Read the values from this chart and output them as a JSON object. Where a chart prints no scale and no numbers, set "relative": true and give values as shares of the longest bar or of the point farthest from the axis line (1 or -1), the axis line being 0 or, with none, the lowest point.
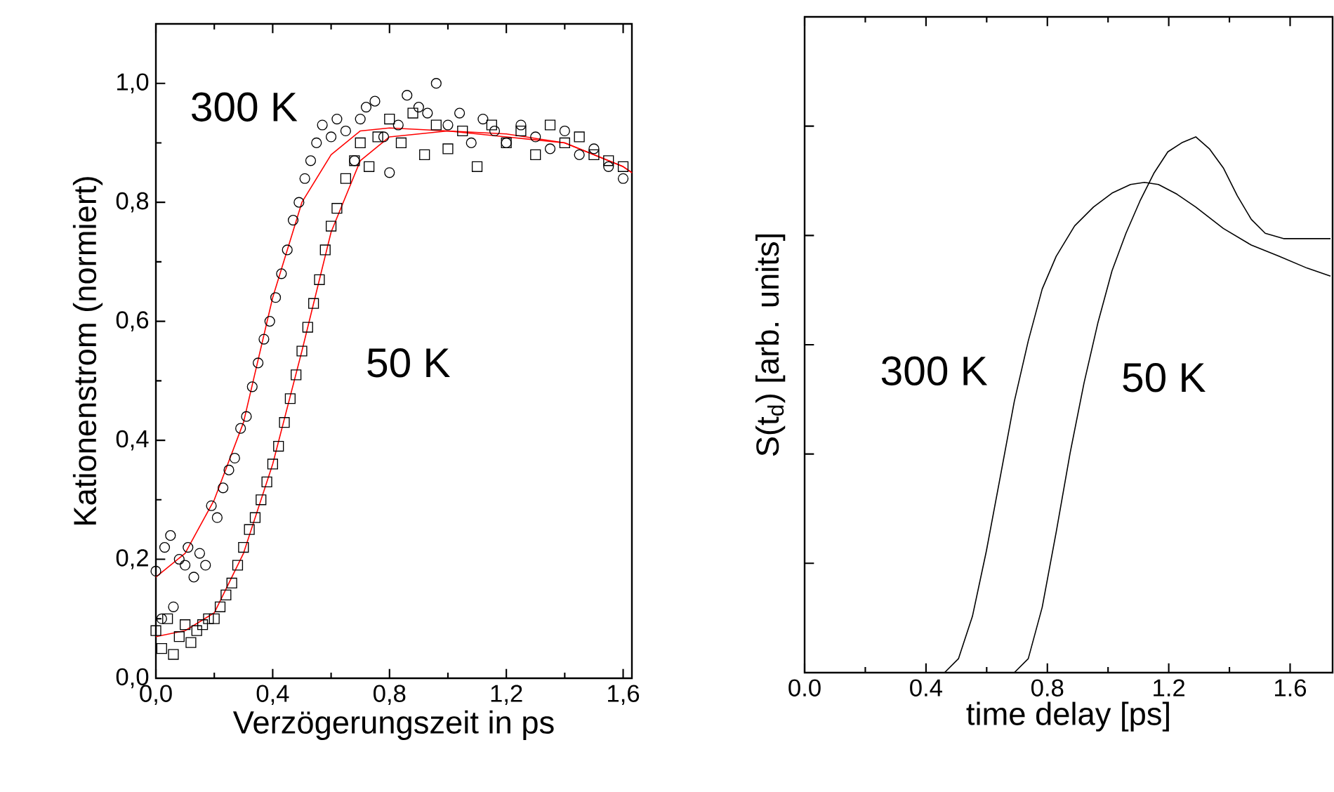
{
  "chart_data": [
    {
      "type": "scatter",
      "xlabel": "Verzögerungszeit in ps",
      "ylabel": "Kationenstrom (normiert)",
      "xlim": [
        0,
        1.63
      ],
      "ylim": [
        0,
        1.1
      ],
      "xticks": [
        {
          "value": 0,
          "label": "0,0"
        },
        {
          "value": 0.4,
          "label": "0,4"
        },
        {
          "value": 0.8,
          "label": "0,8"
        },
        {
          "value": 1.2,
          "label": "1,2"
        },
        {
          "value": 1.6,
          "label": "1,6"
        }
      ],
      "yticks": [
        {
          "value": 0,
          "label": "0,0"
        },
        {
          "value": 0.2,
          "label": "0,2"
        },
        {
          "value": 0.4,
          "label": "0,4"
        },
        {
          "value": 0.6,
          "label": "0,6"
        },
        {
          "value": 0.8,
          "label": "0,8"
        },
        {
          "value": 1.0,
          "label": "1,0"
        }
      ],
      "series": [
        {
          "type": "scatter",
          "marker": "circle",
          "color": "#000000",
          "x": [
            0.0,
            0.02,
            0.03,
            0.05,
            0.06,
            0.08,
            0.1,
            0.11,
            0.13,
            0.15,
            0.17,
            0.19,
            0.21,
            0.23,
            0.25,
            0.27,
            0.29,
            0.31,
            0.33,
            0.35,
            0.37,
            0.39,
            0.41,
            0.43,
            0.45,
            0.47,
            0.49,
            0.51,
            0.53,
            0.55,
            0.57,
            0.6,
            0.62,
            0.65,
            0.68,
            0.7,
            0.72,
            0.75,
            0.78,
            0.8,
            0.83,
            0.86,
            0.9,
            0.93,
            0.96,
            1.0,
            1.04,
            1.08,
            1.12,
            1.16,
            1.2,
            1.25,
            1.3,
            1.35,
            1.4,
            1.45,
            1.5,
            1.55,
            1.6
          ],
          "values": [
            0.18,
            0.1,
            0.22,
            0.24,
            0.12,
            0.2,
            0.19,
            0.22,
            0.17,
            0.21,
            0.19,
            0.29,
            0.27,
            0.32,
            0.35,
            0.37,
            0.42,
            0.44,
            0.49,
            0.53,
            0.57,
            0.6,
            0.64,
            0.68,
            0.72,
            0.77,
            0.8,
            0.84,
            0.87,
            0.9,
            0.93,
            0.91,
            0.94,
            0.92,
            0.87,
            0.94,
            0.96,
            0.97,
            0.91,
            0.85,
            0.93,
            0.98,
            0.96,
            0.95,
            1.0,
            0.93,
            0.95,
            0.9,
            0.94,
            0.92,
            0.9,
            0.93,
            0.91,
            0.89,
            0.92,
            0.88,
            0.89,
            0.86,
            0.84
          ]
        },
        {
          "type": "scatter",
          "marker": "square",
          "color": "#000000",
          "x": [
            0.0,
            0.02,
            0.04,
            0.06,
            0.08,
            0.1,
            0.12,
            0.14,
            0.16,
            0.18,
            0.2,
            0.22,
            0.24,
            0.26,
            0.28,
            0.3,
            0.32,
            0.34,
            0.36,
            0.38,
            0.4,
            0.42,
            0.44,
            0.46,
            0.48,
            0.5,
            0.52,
            0.54,
            0.56,
            0.58,
            0.6,
            0.62,
            0.65,
            0.68,
            0.7,
            0.73,
            0.76,
            0.8,
            0.84,
            0.88,
            0.92,
            0.96,
            1.0,
            1.05,
            1.1,
            1.15,
            1.2,
            1.25,
            1.3,
            1.35,
            1.4,
            1.45,
            1.5,
            1.55,
            1.6
          ],
          "values": [
            0.08,
            0.05,
            0.1,
            0.04,
            0.07,
            0.09,
            0.06,
            0.08,
            0.09,
            0.1,
            0.1,
            0.12,
            0.14,
            0.16,
            0.19,
            0.22,
            0.25,
            0.27,
            0.3,
            0.33,
            0.36,
            0.39,
            0.43,
            0.47,
            0.51,
            0.55,
            0.59,
            0.63,
            0.67,
            0.72,
            0.76,
            0.79,
            0.84,
            0.87,
            0.9,
            0.86,
            0.91,
            0.94,
            0.9,
            0.95,
            0.88,
            0.93,
            0.89,
            0.92,
            0.86,
            0.93,
            0.9,
            0.92,
            0.88,
            0.93,
            0.9,
            0.91,
            0.88,
            0.87,
            0.86
          ]
        },
        {
          "type": "line",
          "color": "#ff0000",
          "x": [
            0,
            0.1,
            0.2,
            0.3,
            0.4,
            0.5,
            0.6,
            0.7,
            0.8,
            1.0,
            1.2,
            1.4,
            1.6,
            1.63
          ],
          "values": [
            0.17,
            0.21,
            0.3,
            0.43,
            0.64,
            0.8,
            0.88,
            0.92,
            0.925,
            0.92,
            0.91,
            0.9,
            0.86,
            0.85
          ]
        },
        {
          "type": "line",
          "color": "#ff0000",
          "x": [
            0,
            0.1,
            0.2,
            0.3,
            0.4,
            0.5,
            0.6,
            0.7,
            0.8,
            1.0,
            1.2,
            1.4,
            1.6,
            1.63
          ],
          "values": [
            0.07,
            0.08,
            0.11,
            0.21,
            0.36,
            0.55,
            0.75,
            0.87,
            0.91,
            0.92,
            0.915,
            0.9,
            0.86,
            0.85
          ]
        }
      ],
      "annotations": [
        "300 K",
        "50 K"
      ]
    },
    {
      "type": "line",
      "relative": true,
      "xlabel": "time delay [ps]",
      "ylabel": "S(t$_{d}$) [arb. units]",
      "xlim": [
        0,
        1.74
      ],
      "xticks": [
        {
          "value": 0,
          "label": "0.0"
        },
        0.4,
        0.8,
        1.2,
        1.6
      ],
      "tick_labels": "x",
      "series": [
        {
          "color": "#000000",
          "x": [
            0.147,
            0.461,
            0.507,
            0.553,
            0.599,
            0.645,
            0.691,
            0.737,
            0.783,
            0.829,
            0.89,
            0.952,
            1.013,
            1.074,
            1.12,
            1.166,
            1.227,
            1.289,
            1.38,
            1.472,
            1.564,
            1.656,
            1.733
          ],
          "values": [
            0,
            0,
            0.026,
            0.105,
            0.227,
            0.366,
            0.506,
            0.619,
            0.716,
            0.777,
            0.834,
            0.869,
            0.895,
            0.911,
            0.915,
            0.911,
            0.893,
            0.869,
            0.829,
            0.798,
            0.777,
            0.755,
            0.74
          ]
        },
        {
          "color": "#000000",
          "x": [
            0.461,
            0.691,
            0.737,
            0.783,
            0.829,
            0.875,
            0.921,
            0.967,
            1.013,
            1.059,
            1.105,
            1.151,
            1.197,
            1.243,
            1.289,
            1.335,
            1.38,
            1.426,
            1.472,
            1.518,
            1.58,
            1.626,
            1.733
          ],
          "values": [
            0,
            0,
            0.026,
            0.122,
            0.262,
            0.41,
            0.541,
            0.654,
            0.75,
            0.82,
            0.88,
            0.932,
            0.972,
            0.989,
            1.0,
            0.977,
            0.942,
            0.89,
            0.846,
            0.82,
            0.81,
            0.81,
            0.81
          ]
        }
      ],
      "annotations": [
        "300 K",
        "50 K"
      ]
    }
  ]
}
